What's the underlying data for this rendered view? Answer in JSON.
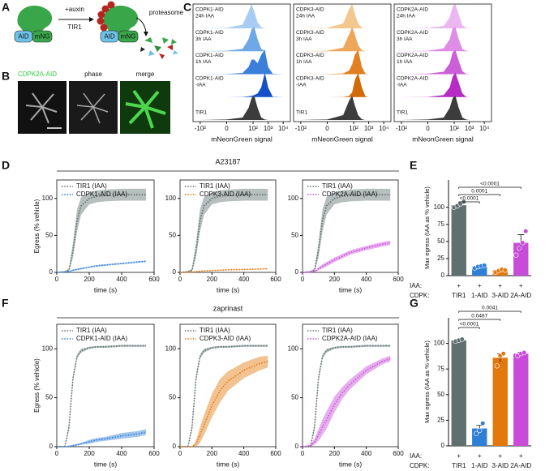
{
  "panel_labels": [
    "A",
    "B",
    "C",
    "D",
    "E",
    "F",
    "G"
  ],
  "schematic": {
    "treatment": "+auxin",
    "ligase": "TIR1",
    "tag_left": [
      "AID",
      "mNG"
    ],
    "tag_right": [
      "AID",
      "mNG"
    ],
    "degrader": "proteasome"
  },
  "micrographs": {
    "channels": [
      "CDPK2A-AID",
      "phase",
      "merge"
    ]
  },
  "section_titles": [
    "A23187",
    "zaprinast"
  ],
  "chart_data": [
    {
      "type": "ridgeline",
      "x_label": "mNeonGreen signal",
      "xscale": "asinh",
      "xlim": [
        -300,
        30000
      ],
      "xticks": [
        {
          "value": -100,
          "label": "-10²"
        },
        0,
        {
          "value": 100,
          "label": "10²"
        },
        {
          "value": 1000,
          "label": "10³"
        },
        {
          "value": 10000,
          "label": "10⁴"
        }
      ],
      "x": [
        -100,
        0,
        20,
        50,
        80,
        120,
        200,
        350,
        600,
        1000,
        2000,
        10000
      ],
      "series": [
        {
          "name": [
            "CDPK1-AID",
            "24h IAA"
          ],
          "color": "#a9cdf2",
          "values": [
            0,
            0.02,
            0.15,
            0.7,
            1,
            0.7,
            0.25,
            0.05,
            0.01,
            0,
            0,
            0
          ]
        },
        {
          "name": [
            "CDPK1-AID",
            "3h IAA"
          ],
          "color": "#6fa8e8",
          "values": [
            0,
            0.02,
            0.1,
            0.5,
            0.9,
            1,
            0.5,
            0.1,
            0.02,
            0,
            0,
            0
          ]
        },
        {
          "name": [
            "CDPK1-AID",
            "1h IAA"
          ],
          "color": "#3a7fdc",
          "values": [
            0,
            0.01,
            0.05,
            0.3,
            0.6,
            0.6,
            0.45,
            0.8,
            1,
            0.3,
            0.02,
            0
          ]
        },
        {
          "name": [
            "CDPK1-AID",
            "-IAA"
          ],
          "color": "#1550c8",
          "values": [
            0,
            0,
            0.01,
            0.03,
            0.05,
            0.08,
            0.15,
            0.4,
            1,
            0.4,
            0.02,
            0
          ]
        },
        {
          "name": [
            "TIR1"
          ],
          "color": "#3c3c3c",
          "values": [
            0,
            0.02,
            0.1,
            0.5,
            0.9,
            1,
            0.5,
            0.1,
            0.02,
            0,
            0,
            0
          ]
        }
      ]
    },
    {
      "type": "ridgeline",
      "x_label": "mNeonGreen signal",
      "xscale": "asinh",
      "xlim": [
        -300,
        30000
      ],
      "xticks": [
        {
          "value": -100,
          "label": "-10²"
        },
        0,
        {
          "value": 100,
          "label": "10²"
        },
        {
          "value": 1000,
          "label": "10³"
        },
        {
          "value": 10000,
          "label": "10⁴"
        }
      ],
      "x": [
        -100,
        0,
        20,
        50,
        80,
        120,
        200,
        350,
        600,
        1000,
        2000,
        10000
      ],
      "series": [
        {
          "name": [
            "CDPK3-AID",
            "24h IAA"
          ],
          "color": "#f3c890",
          "values": [
            0,
            0.02,
            0.2,
            0.8,
            1,
            0.6,
            0.2,
            0.03,
            0,
            0,
            0,
            0
          ]
        },
        {
          "name": [
            "CDPK3-AID",
            "3h IAA"
          ],
          "color": "#eda65a",
          "values": [
            0,
            0.02,
            0.15,
            0.7,
            1,
            0.7,
            0.25,
            0.04,
            0,
            0,
            0,
            0
          ]
        },
        {
          "name": [
            "CDPK3-AID",
            "1h IAA"
          ],
          "color": "#e27f20",
          "values": [
            0,
            0.01,
            0.03,
            0.15,
            0.4,
            0.8,
            1,
            0.3,
            0.02,
            0,
            0,
            0
          ]
        },
        {
          "name": [
            "CDPK3-AID",
            "-IAA"
          ],
          "color": "#d26a08",
          "values": [
            0,
            0,
            0.01,
            0.05,
            0.2,
            0.7,
            1,
            0.4,
            0.03,
            0,
            0,
            0
          ]
        },
        {
          "name": [
            "TIR1"
          ],
          "color": "#3c3c3c",
          "values": [
            0,
            0.02,
            0.2,
            0.8,
            1,
            0.6,
            0.2,
            0.03,
            0,
            0,
            0,
            0
          ]
        }
      ]
    },
    {
      "type": "ridgeline",
      "x_label": "mNeonGreen signal",
      "xscale": "asinh",
      "xlim": [
        -300,
        30000
      ],
      "xticks": [
        {
          "value": -100,
          "label": "-10²"
        },
        0,
        {
          "value": 100,
          "label": "10²"
        },
        {
          "value": 1000,
          "label": "10³"
        },
        {
          "value": 10000,
          "label": "10⁴"
        }
      ],
      "x": [
        -100,
        0,
        20,
        50,
        80,
        120,
        200,
        350,
        600,
        1000,
        2000,
        10000
      ],
      "series": [
        {
          "name": [
            "CDPK2A-AID",
            "24h IAA"
          ],
          "color": "#ecb6f0",
          "values": [
            0,
            0.02,
            0.1,
            0.45,
            0.9,
            1,
            0.55,
            0.12,
            0.02,
            0,
            0,
            0
          ]
        },
        {
          "name": [
            "CDPK2A-AID",
            "3h IAA"
          ],
          "color": "#de8ce6",
          "values": [
            0,
            0.02,
            0.12,
            0.5,
            0.95,
            1,
            0.5,
            0.1,
            0.02,
            0,
            0,
            0
          ]
        },
        {
          "name": [
            "CDPK2A-AID",
            "1h IAA"
          ],
          "color": "#cc5fd8",
          "values": [
            0,
            0.02,
            0.1,
            0.45,
            0.9,
            1,
            0.55,
            0.12,
            0.02,
            0,
            0,
            0
          ]
        },
        {
          "name": [
            "CDPK2A-AID",
            "-IAA"
          ],
          "color": "#b52bc4",
          "values": [
            0,
            0.01,
            0.08,
            0.4,
            0.85,
            1,
            0.6,
            0.15,
            0.02,
            0,
            0,
            0
          ]
        },
        {
          "name": [
            "TIR1"
          ],
          "color": "#3c3c3c",
          "values": [
            0,
            0.02,
            0.1,
            0.5,
            0.9,
            1,
            0.5,
            0.1,
            0.02,
            0,
            0,
            0
          ]
        }
      ]
    },
    {
      "type": "line",
      "x_label": "time (s)",
      "y_label": "Egress (% vehicle)",
      "xlim": [
        0,
        600
      ],
      "xticks": [
        0,
        200,
        400,
        600
      ],
      "ylim": [
        0,
        125
      ],
      "yticks": [
        0,
        50,
        100
      ],
      "x": [
        0,
        50,
        75,
        100,
        125,
        150,
        200,
        250,
        300,
        400,
        500,
        550
      ],
      "series": [
        {
          "name": "TIR1 (IAA)",
          "color": "#5e6e6e",
          "values": [
            0,
            1,
            3,
            30,
            70,
            90,
            100,
            103,
            104,
            105,
            105,
            105
          ],
          "errors": [
            0,
            1,
            2,
            10,
            15,
            12,
            8,
            8,
            8,
            8,
            8,
            8
          ]
        },
        {
          "name": "CDPK1-AID (IAA)",
          "color": "#2f7fd6",
          "values": [
            0,
            0.5,
            1,
            3,
            4,
            5,
            7,
            9,
            10,
            12,
            14,
            15
          ],
          "errors": [
            0,
            0.5,
            0.5,
            1,
            1,
            1,
            1,
            1,
            1,
            1,
            1,
            1
          ]
        }
      ]
    },
    {
      "type": "line",
      "x_label": "time (s)",
      "xlim": [
        0,
        600
      ],
      "xticks": [
        0,
        200,
        400,
        600
      ],
      "ylim": [
        0,
        125
      ],
      "yticks": [
        0,
        50,
        100
      ],
      "x": [
        0,
        50,
        75,
        100,
        125,
        150,
        200,
        250,
        300,
        400,
        500,
        550
      ],
      "series": [
        {
          "name": "TIR1 (IAA)",
          "color": "#5e6e6e",
          "values": [
            0,
            1,
            3,
            30,
            70,
            90,
            100,
            103,
            104,
            105,
            105,
            105
          ],
          "errors": [
            0,
            1,
            2,
            10,
            15,
            12,
            8,
            8,
            8,
            8,
            8,
            8
          ]
        },
        {
          "name": "CDPK3-AID (IAA)",
          "color": "#e3780c",
          "values": [
            0,
            0.3,
            0.5,
            1,
            1.5,
            2,
            2.5,
            3,
            3.5,
            4,
            4.5,
            5
          ],
          "errors": [
            0,
            0.3,
            0.3,
            0.5,
            0.5,
            0.5,
            0.5,
            0.5,
            0.5,
            0.5,
            0.5,
            0.5
          ]
        }
      ]
    },
    {
      "type": "line",
      "x_label": "time (s)",
      "xlim": [
        0,
        600
      ],
      "xticks": [
        0,
        200,
        400,
        600
      ],
      "ylim": [
        0,
        125
      ],
      "yticks": [
        0,
        50,
        100
      ],
      "x": [
        0,
        50,
        75,
        100,
        125,
        150,
        200,
        250,
        300,
        400,
        500,
        550
      ],
      "series": [
        {
          "name": "TIR1 (IAA)",
          "color": "#5e6e6e",
          "values": [
            0,
            1,
            3,
            30,
            70,
            90,
            100,
            103,
            104,
            105,
            105,
            105
          ],
          "errors": [
            0,
            1,
            2,
            10,
            15,
            12,
            8,
            8,
            8,
            8,
            8,
            8
          ]
        },
        {
          "name": "CDPK2A-AID (IAA)",
          "color": "#c94bd9",
          "values": [
            0,
            0.5,
            1,
            5,
            8,
            11,
            17,
            22,
            27,
            33,
            38,
            40
          ],
          "errors": [
            0,
            0.5,
            1,
            2,
            3,
            3,
            3,
            3,
            3,
            3,
            3,
            3
          ]
        }
      ]
    },
    {
      "type": "bar",
      "y_label": "Max egress (IAA as % vehicle)",
      "ylim": [
        0,
        140
      ],
      "yticks": [
        0,
        25,
        50,
        75,
        100
      ],
      "row_labels": [
        "IAA:",
        "CDPK:"
      ],
      "treatment": [
        "+",
        "+",
        "+",
        "+"
      ],
      "categories": [
        "TIR1",
        "1-AID",
        "3-AID",
        "2A-AID"
      ],
      "colors": [
        "#5f706f",
        "#2f7fd6",
        "#e3780c",
        "#c94bd9"
      ],
      "values": [
        103,
        13,
        8,
        48
      ],
      "errors": [
        2,
        1.5,
        1.5,
        12
      ],
      "points": [
        [
          100,
          102,
          105,
          108
        ],
        [
          11,
          13,
          14,
          15
        ],
        [
          5,
          7,
          9,
          8
        ],
        [
          30,
          40,
          48,
          65
        ]
      ],
      "comparisons": [
        {
          "label": "<0.0001",
          "pair": [
            0,
            3
          ]
        },
        {
          "label": "0.0001",
          "pair": [
            0,
            2
          ]
        },
        {
          "label": "<0.0001",
          "pair": [
            0,
            1
          ]
        }
      ]
    },
    {
      "type": "line",
      "x_label": "time (s)",
      "y_label": "Egress (% vehicle)",
      "xlim": [
        0,
        600
      ],
      "xticks": [
        0,
        200,
        400,
        600
      ],
      "ylim": [
        0,
        125
      ],
      "yticks": [
        0,
        50,
        100
      ],
      "x": [
        0,
        50,
        75,
        100,
        125,
        150,
        200,
        250,
        300,
        400,
        500,
        550
      ],
      "series": [
        {
          "name": "TIR1 (IAA)",
          "color": "#5e6e6e",
          "values": [
            0,
            0,
            20,
            70,
            92,
            98,
            101,
            102,
            102,
            103,
            103,
            103
          ],
          "errors": [
            0,
            0,
            3,
            3,
            2,
            2,
            1,
            1,
            1,
            1,
            1,
            1
          ]
        },
        {
          "name": "CDPK1-AID (IAA)",
          "color": "#2f7fd6",
          "values": [
            0,
            0,
            0.5,
            1,
            2,
            3,
            5,
            7,
            8,
            11,
            13,
            15
          ],
          "errors": [
            0,
            0,
            0.5,
            1,
            1,
            1,
            2,
            2,
            2,
            3,
            3,
            3
          ]
        }
      ]
    },
    {
      "type": "line",
      "x_label": "time (s)",
      "xlim": [
        0,
        600
      ],
      "xticks": [
        0,
        200,
        400,
        600
      ],
      "ylim": [
        0,
        125
      ],
      "yticks": [
        0,
        50,
        100
      ],
      "x": [
        0,
        50,
        75,
        100,
        125,
        150,
        200,
        250,
        300,
        400,
        500,
        550
      ],
      "series": [
        {
          "name": "TIR1 (IAA)",
          "color": "#5e6e6e",
          "values": [
            0,
            0,
            20,
            70,
            92,
            98,
            101,
            102,
            102,
            103,
            103,
            103
          ],
          "errors": [
            0,
            0,
            3,
            3,
            2,
            2,
            1,
            1,
            1,
            1,
            1,
            1
          ]
        },
        {
          "name": "CDPK3-AID (IAA)",
          "color": "#e3780c",
          "values": [
            0,
            0,
            0,
            3,
            12,
            22,
            42,
            57,
            67,
            78,
            85,
            87
          ],
          "errors": [
            0,
            0,
            0,
            3,
            8,
            10,
            12,
            12,
            10,
            8,
            7,
            6
          ]
        }
      ]
    },
    {
      "type": "line",
      "x_label": "time (s)",
      "xlim": [
        0,
        600
      ],
      "xticks": [
        0,
        200,
        400,
        600
      ],
      "ylim": [
        0,
        125
      ],
      "yticks": [
        0,
        50,
        100
      ],
      "x": [
        0,
        50,
        75,
        100,
        125,
        150,
        200,
        250,
        300,
        400,
        500,
        550
      ],
      "series": [
        {
          "name": "TIR1 (IAA)",
          "color": "#5e6e6e",
          "values": [
            0,
            0,
            20,
            70,
            92,
            98,
            101,
            102,
            102,
            103,
            103,
            103
          ],
          "errors": [
            0,
            0,
            3,
            3,
            2,
            2,
            1,
            1,
            1,
            1,
            1,
            1
          ]
        },
        {
          "name": "CDPK2A-AID (IAA)",
          "color": "#c94bd9",
          "values": [
            0,
            1,
            5,
            12,
            20,
            27,
            43,
            55,
            64,
            78,
            87,
            90
          ],
          "errors": [
            0,
            1,
            3,
            6,
            8,
            9,
            8,
            6,
            5,
            4,
            3,
            3
          ]
        }
      ]
    },
    {
      "type": "bar",
      "y_label": "Max egress (IAA as % vehicle)",
      "ylim": [
        0,
        125
      ],
      "yticks": [
        0,
        25,
        50,
        75,
        100
      ],
      "row_labels": [
        "IAA:",
        "CDPK:"
      ],
      "treatment": [
        "+",
        "+",
        "+",
        "+"
      ],
      "categories": [
        "TIR1",
        "1-AID",
        "3-AID",
        "2A-AID"
      ],
      "colors": [
        "#5f706f",
        "#2f7fd6",
        "#e3780c",
        "#c94bd9"
      ],
      "values": [
        103,
        17,
        86,
        90
      ],
      "errors": [
        1,
        3,
        4,
        1.5
      ],
      "points": [
        [
          102,
          103,
          104
        ],
        [
          12,
          15,
          22
        ],
        [
          78,
          88,
          90
        ],
        [
          88,
          90,
          91
        ]
      ],
      "comparisons": [
        {
          "label": "0.0041",
          "pair": [
            0,
            3
          ]
        },
        {
          "label": "0.0467",
          "pair": [
            0,
            2
          ]
        },
        {
          "label": "<0.0001",
          "pair": [
            0,
            1
          ]
        }
      ]
    }
  ]
}
